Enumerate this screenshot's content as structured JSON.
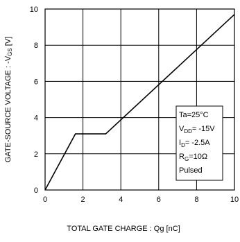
{
  "chart_data": {
    "type": "line",
    "title": "",
    "xlabel": "TOTAL GATE CHARGE : Qg  [nC]",
    "ylabel": {
      "before": "GATE-SOURCE VOLTAGE : -V",
      "sub": "GS",
      "after": " [V]"
    },
    "xlim": [
      0,
      10
    ],
    "ylim": [
      0,
      10
    ],
    "x_ticks": [
      "0",
      "2",
      "4",
      "6",
      "8",
      "10"
    ],
    "y_ticks": [
      "0",
      "2",
      "4",
      "6",
      "8",
      "10"
    ],
    "grid": true,
    "series": [
      {
        "x": [
          0,
          1.6,
          3.2,
          10
        ],
        "y": [
          0,
          3.1,
          3.1,
          9.7
        ]
      }
    ],
    "conditions_box": {
      "placement": "lower-right",
      "lines": [
        {
          "before": "Ta=25°C",
          "sub": "",
          "after": ""
        },
        {
          "before": "V",
          "sub": "DD",
          "after": "= -15V"
        },
        {
          "before": "I",
          "sub": "D",
          "after": "= -2.5A"
        },
        {
          "before": "R",
          "sub": "G",
          "after": "=10Ω"
        },
        {
          "before": "Pulsed",
          "sub": "",
          "after": ""
        }
      ]
    }
  }
}
